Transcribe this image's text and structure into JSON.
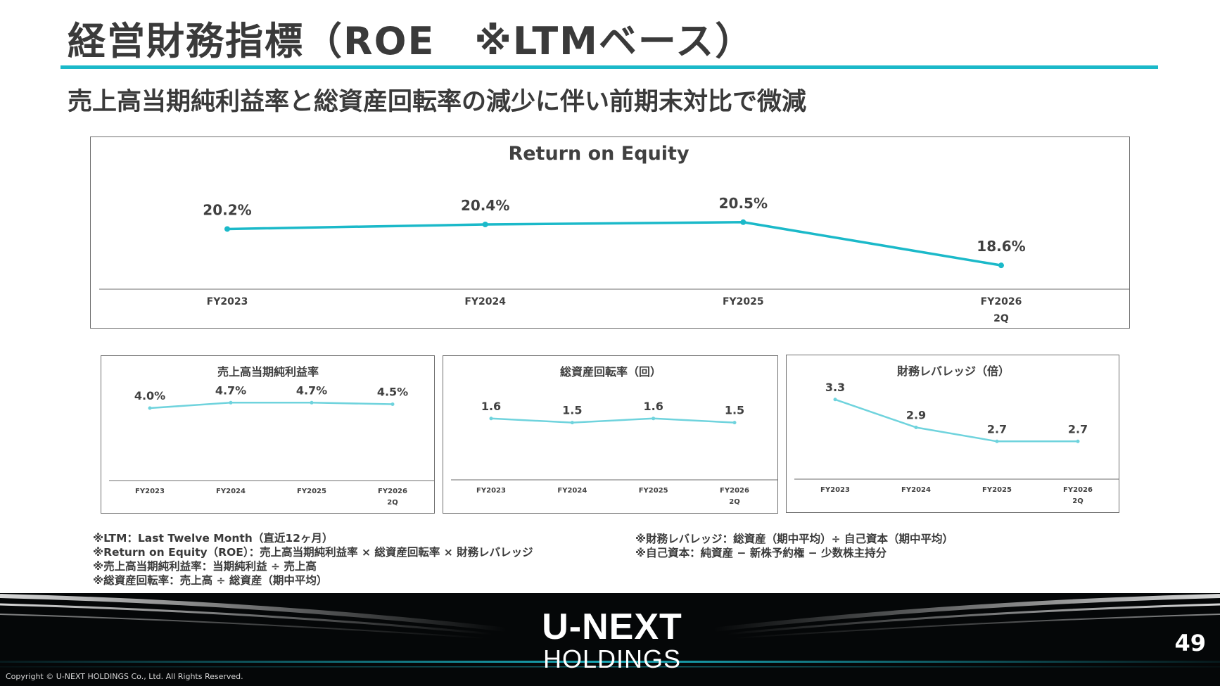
{
  "header": {
    "title": "経営財務指標（ROE　※LTMベース）",
    "subtitle": "売上高当期純利益率と総資産回転率の減少に伴い前期末対比で微減"
  },
  "colors": {
    "accent": "#1bb9c9",
    "small_line": "#6fd3dd",
    "text": "#404040"
  },
  "chart_data": [
    {
      "type": "line",
      "title": "Return on Equity",
      "categories": [
        [
          "FY2023"
        ],
        [
          "FY2024"
        ],
        [
          "FY2025"
        ],
        [
          "FY2026",
          "2Q"
        ]
      ],
      "values": [
        20.2,
        20.4,
        20.5,
        18.6
      ],
      "labels": [
        "20.2%",
        "20.4%",
        "20.5%",
        "18.6%"
      ],
      "ylim": [
        10,
        23
      ],
      "grid": false,
      "legend": "none"
    },
    {
      "type": "line",
      "title": "売上高当期純利益率",
      "categories": [
        [
          "FY2023"
        ],
        [
          "FY2024"
        ],
        [
          "FY2025"
        ],
        [
          "FY2026",
          "2Q"
        ]
      ],
      "values": [
        4.0,
        4.7,
        4.7,
        4.5
      ],
      "labels": [
        "4.0%",
        "4.7%",
        "4.7%",
        "4.5%"
      ],
      "ylim": [
        0,
        6
      ],
      "grid": false,
      "legend": "none"
    },
    {
      "type": "line",
      "title": "総資産回転率（回）",
      "categories": [
        [
          "FY2023"
        ],
        [
          "FY2024"
        ],
        [
          "FY2025"
        ],
        [
          "FY2026",
          "2Q"
        ]
      ],
      "values": [
        1.6,
        1.5,
        1.6,
        1.5
      ],
      "labels": [
        "1.6",
        "1.5",
        "1.6",
        "1.5"
      ],
      "ylim": [
        0.2,
        2.2
      ],
      "grid": false,
      "legend": "none"
    },
    {
      "type": "line",
      "title": "財務レバレッジ（倍）",
      "categories": [
        [
          "FY2023"
        ],
        [
          "FY2024"
        ],
        [
          "FY2025"
        ],
        [
          "FY2026",
          "2Q"
        ]
      ],
      "values": [
        3.3,
        2.9,
        2.7,
        2.7
      ],
      "labels": [
        "3.3",
        "2.9",
        "2.7",
        "2.7"
      ],
      "ylim": [
        2.3,
        3.6
      ],
      "grid": false,
      "legend": "none"
    }
  ],
  "notes": {
    "left": [
      "※LTM：Last Twelve Month（直近12ヶ月）",
      "※Return on Equity（ROE）：売上高当期純利益率 × 総資産回転率 × 財務レバレッジ",
      "※売上高当期純利益率：当期純利益 ÷ 売上高",
      "※総資産回転率：売上高 ÷ 総資産（期中平均）"
    ],
    "right": [
      "※財務レバレッジ：総資産（期中平均）÷ 自己資本（期中平均）",
      "※自己資本：純資産 − 新株予約権 − 少数株主持分"
    ]
  },
  "footer": {
    "logo_main": "U-NEXT",
    "logo_sub": "HOLDINGS",
    "page_number": "49",
    "copyright": "Copyright © U-NEXT HOLDINGS Co., Ltd. All Rights Reserved."
  }
}
